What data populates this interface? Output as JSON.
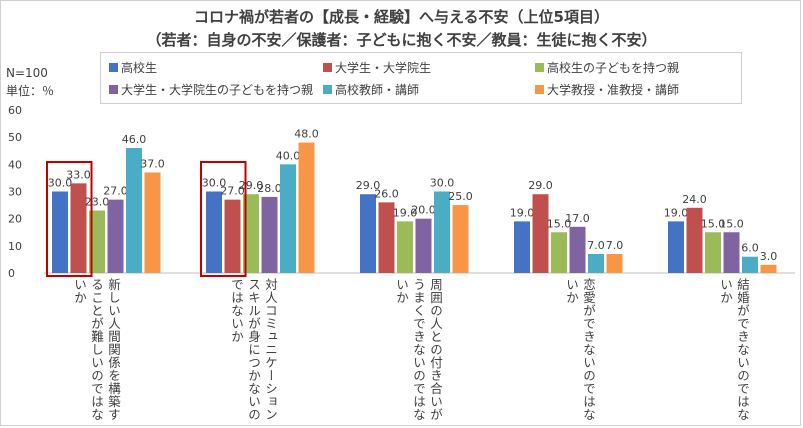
{
  "chart_data": {
    "type": "bar",
    "title": "コロナ禍が若者の【成長・経験】へ与える不安（上位5項目）",
    "subtitle": "（若者：自身の不安／保護者：子どもに抱く不安／教員：生徒に抱く不安）",
    "sample_size": "N=100",
    "unit_label": "単位：％",
    "ylim": [
      0,
      60
    ],
    "yticks": [
      "0",
      "10",
      "20",
      "30",
      "40",
      "50",
      "60"
    ],
    "grid": false,
    "legend_position": "top",
    "categories": [
      "新しい人間関係を構築することが難しいのではないか",
      "対人コミュニケーションスキルが身につかないのではないか",
      "周囲の人との付き合いがうまくできないのではないか",
      "恋愛ができないのではないか",
      "結婚ができないのではないか"
    ],
    "series": [
      {
        "name": "高校生",
        "color": "#4472c4",
        "values": [
          30.0,
          30.0,
          29.0,
          19.0,
          19.0
        ],
        "labels": [
          "30.0",
          "30.0",
          "29.0",
          "19.0",
          "19.0"
        ]
      },
      {
        "name": "大学生・大学院生",
        "color": "#c0504d",
        "values": [
          33.0,
          27.0,
          26.0,
          29.0,
          24.0
        ],
        "labels": [
          "33.0",
          "27.0",
          "26.0",
          "29.0",
          "24.0"
        ]
      },
      {
        "name": "高校生の子どもを持つ親",
        "color": "#9bbb59",
        "values": [
          23.0,
          29.0,
          19.0,
          15.0,
          15.0
        ],
        "labels": [
          "23.0",
          "29.0",
          "19.0",
          "15.0",
          "15.0"
        ]
      },
      {
        "name": "大学生・大学院生の子どもを持つ親",
        "color": "#8064a2",
        "values": [
          27.0,
          28.0,
          20.0,
          17.0,
          15.0
        ],
        "labels": [
          "27.0",
          "28.0",
          "20.0",
          "17.0",
          "15.0"
        ]
      },
      {
        "name": "高校教師・講師",
        "color": "#4bacc6",
        "values": [
          46.0,
          40.0,
          30.0,
          7.0,
          6.0
        ],
        "labels": [
          "46.0",
          "40.0",
          "30.0",
          "7.0",
          "6.0"
        ]
      },
      {
        "name": "大学教授・准教授・講師",
        "color": "#f79646",
        "values": [
          37.0,
          48.0,
          25.0,
          7.0,
          3.0
        ],
        "labels": [
          "37.0",
          "48.0",
          "25.0",
          "7.0",
          "3.0"
        ]
      }
    ],
    "highlight_color": "#c00000"
  }
}
